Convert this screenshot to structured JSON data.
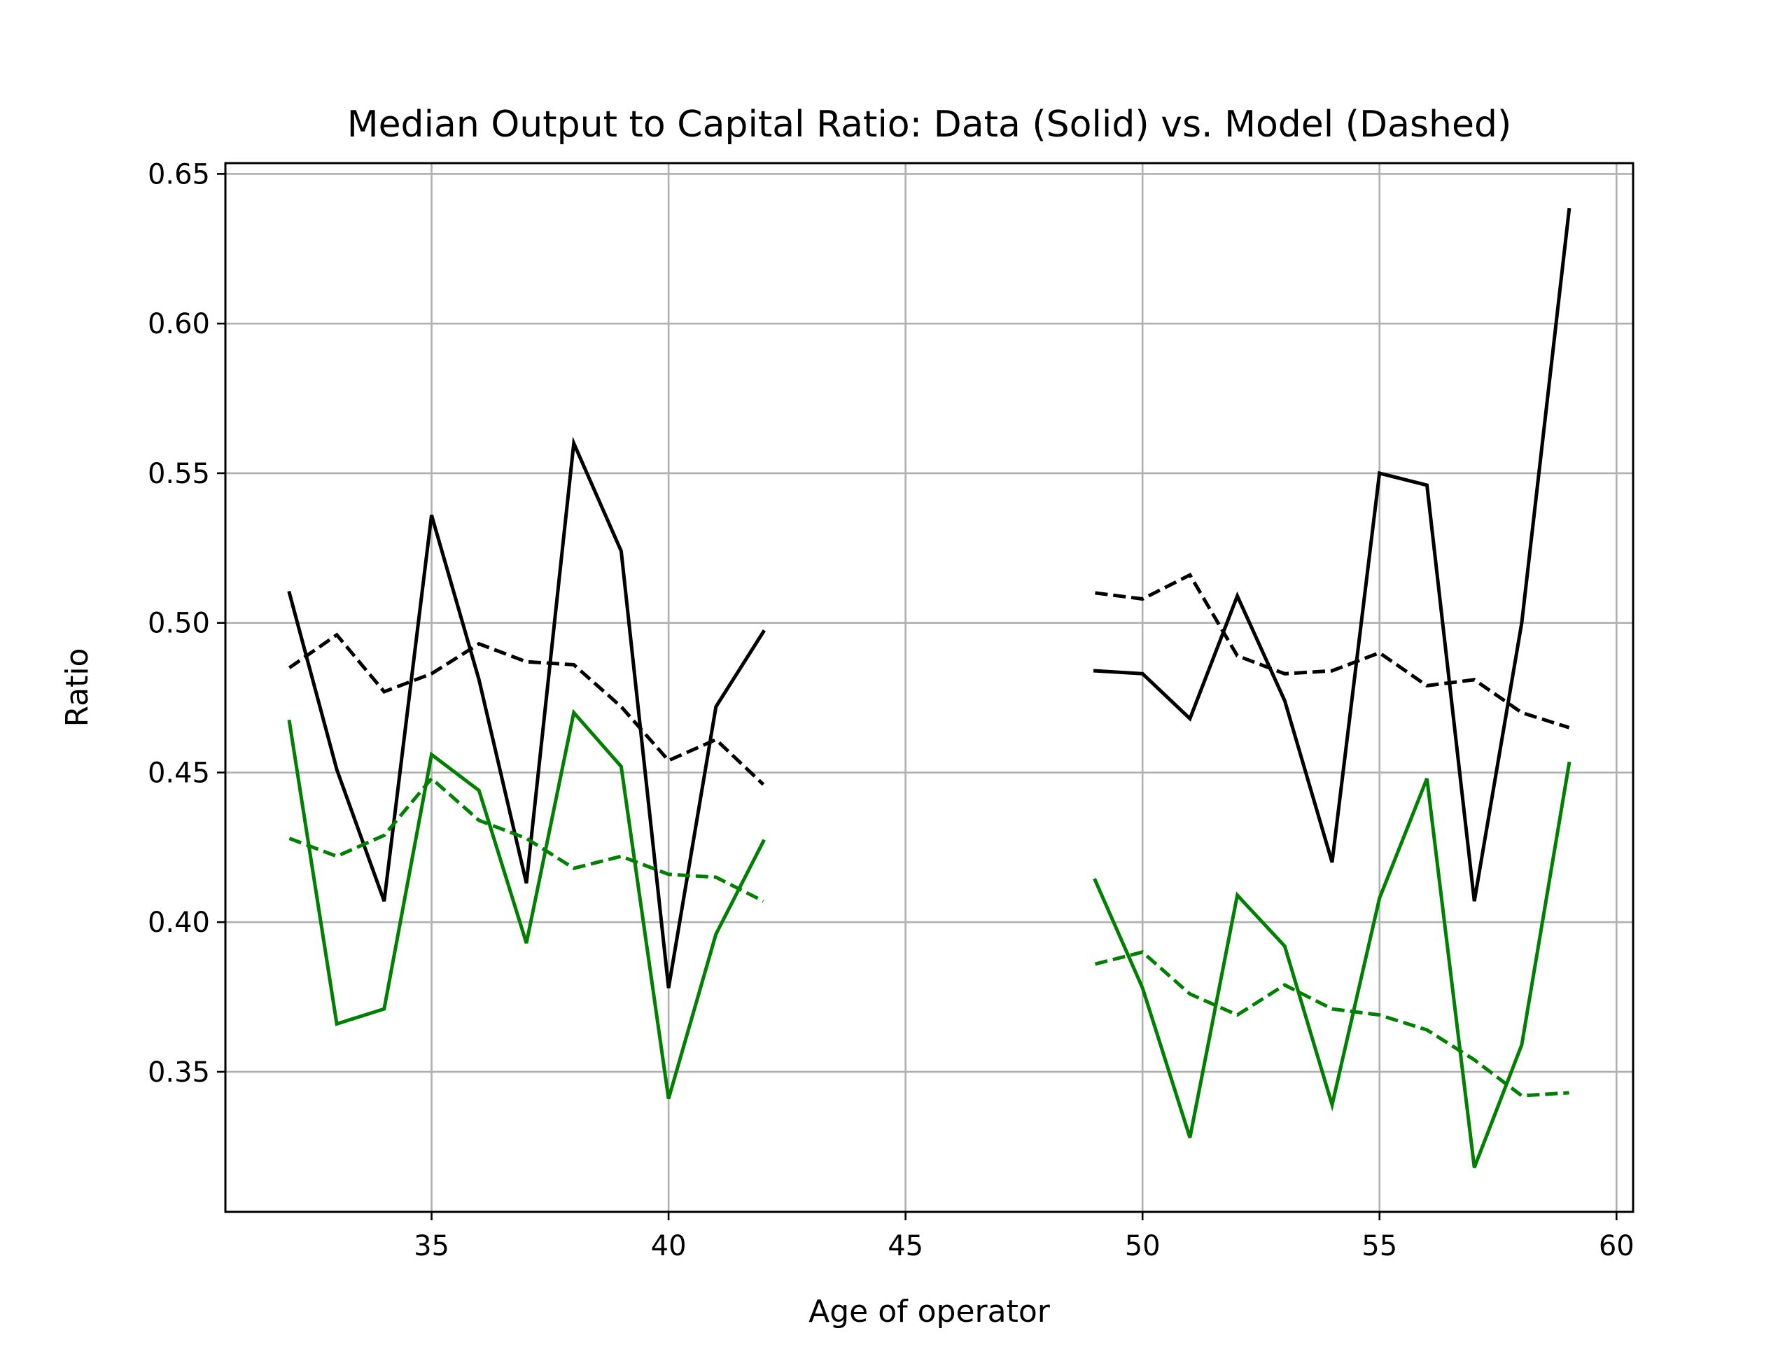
{
  "chart_data": {
    "type": "line",
    "title": "Median Output to Capital Ratio: Data (Solid) vs. Model (Dashed)",
    "xlabel": "Age of operator",
    "ylabel": "Ratio",
    "xlim": [
      30.65,
      60.35
    ],
    "ylim": [
      0.3032,
      0.6536
    ],
    "x_ticks": [
      35,
      40,
      45,
      50,
      55,
      60
    ],
    "x_tick_labels": [
      "35",
      "40",
      "45",
      "50",
      "55",
      "60"
    ],
    "y_ticks": [
      0.35,
      0.4,
      0.45,
      0.5,
      0.55,
      0.6,
      0.65
    ],
    "y_tick_labels": [
      "0.35",
      "0.40",
      "0.45",
      "0.50",
      "0.55",
      "0.60",
      "0.65"
    ],
    "grid": true,
    "legend": "none",
    "x": [
      32,
      33,
      34,
      35,
      36,
      37,
      38,
      39,
      40,
      41,
      42,
      43,
      44,
      45,
      46,
      47,
      48,
      49,
      50,
      51,
      52,
      53,
      54,
      55,
      56,
      57,
      58,
      59
    ],
    "series": [
      {
        "color": "#000000",
        "dash": "solid",
        "values": [
          0.51,
          0.451,
          0.407,
          0.536,
          0.481,
          0.413,
          0.56,
          0.524,
          0.378,
          0.472,
          0.497,
          null,
          null,
          null,
          null,
          null,
          null,
          0.484,
          0.483,
          0.468,
          0.509,
          0.474,
          0.42,
          0.55,
          0.546,
          0.407,
          0.5,
          0.638
        ]
      },
      {
        "color": "#000000",
        "dash": "dashed",
        "values": [
          0.485,
          0.496,
          0.477,
          0.483,
          0.493,
          0.487,
          0.486,
          0.472,
          0.454,
          0.461,
          0.446,
          null,
          null,
          null,
          null,
          null,
          null,
          0.51,
          0.508,
          0.516,
          0.489,
          0.483,
          0.484,
          0.49,
          0.479,
          0.481,
          0.47,
          0.465
        ]
      },
      {
        "color": "#008000",
        "dash": "solid",
        "values": [
          0.467,
          0.366,
          0.371,
          0.456,
          0.444,
          0.393,
          0.47,
          0.452,
          0.341,
          0.396,
          0.427,
          null,
          null,
          null,
          null,
          null,
          null,
          0.414,
          0.378,
          0.328,
          0.409,
          0.392,
          0.339,
          0.408,
          0.448,
          0.318,
          0.359,
          0.453
        ]
      },
      {
        "color": "#008000",
        "dash": "dashed",
        "values": [
          0.428,
          0.422,
          0.429,
          0.448,
          0.434,
          0.428,
          0.418,
          0.422,
          0.416,
          0.415,
          0.407,
          null,
          null,
          null,
          null,
          null,
          null,
          0.386,
          0.39,
          0.376,
          0.369,
          0.379,
          0.371,
          0.369,
          0.364,
          0.354,
          0.342,
          0.343
        ]
      }
    ]
  }
}
